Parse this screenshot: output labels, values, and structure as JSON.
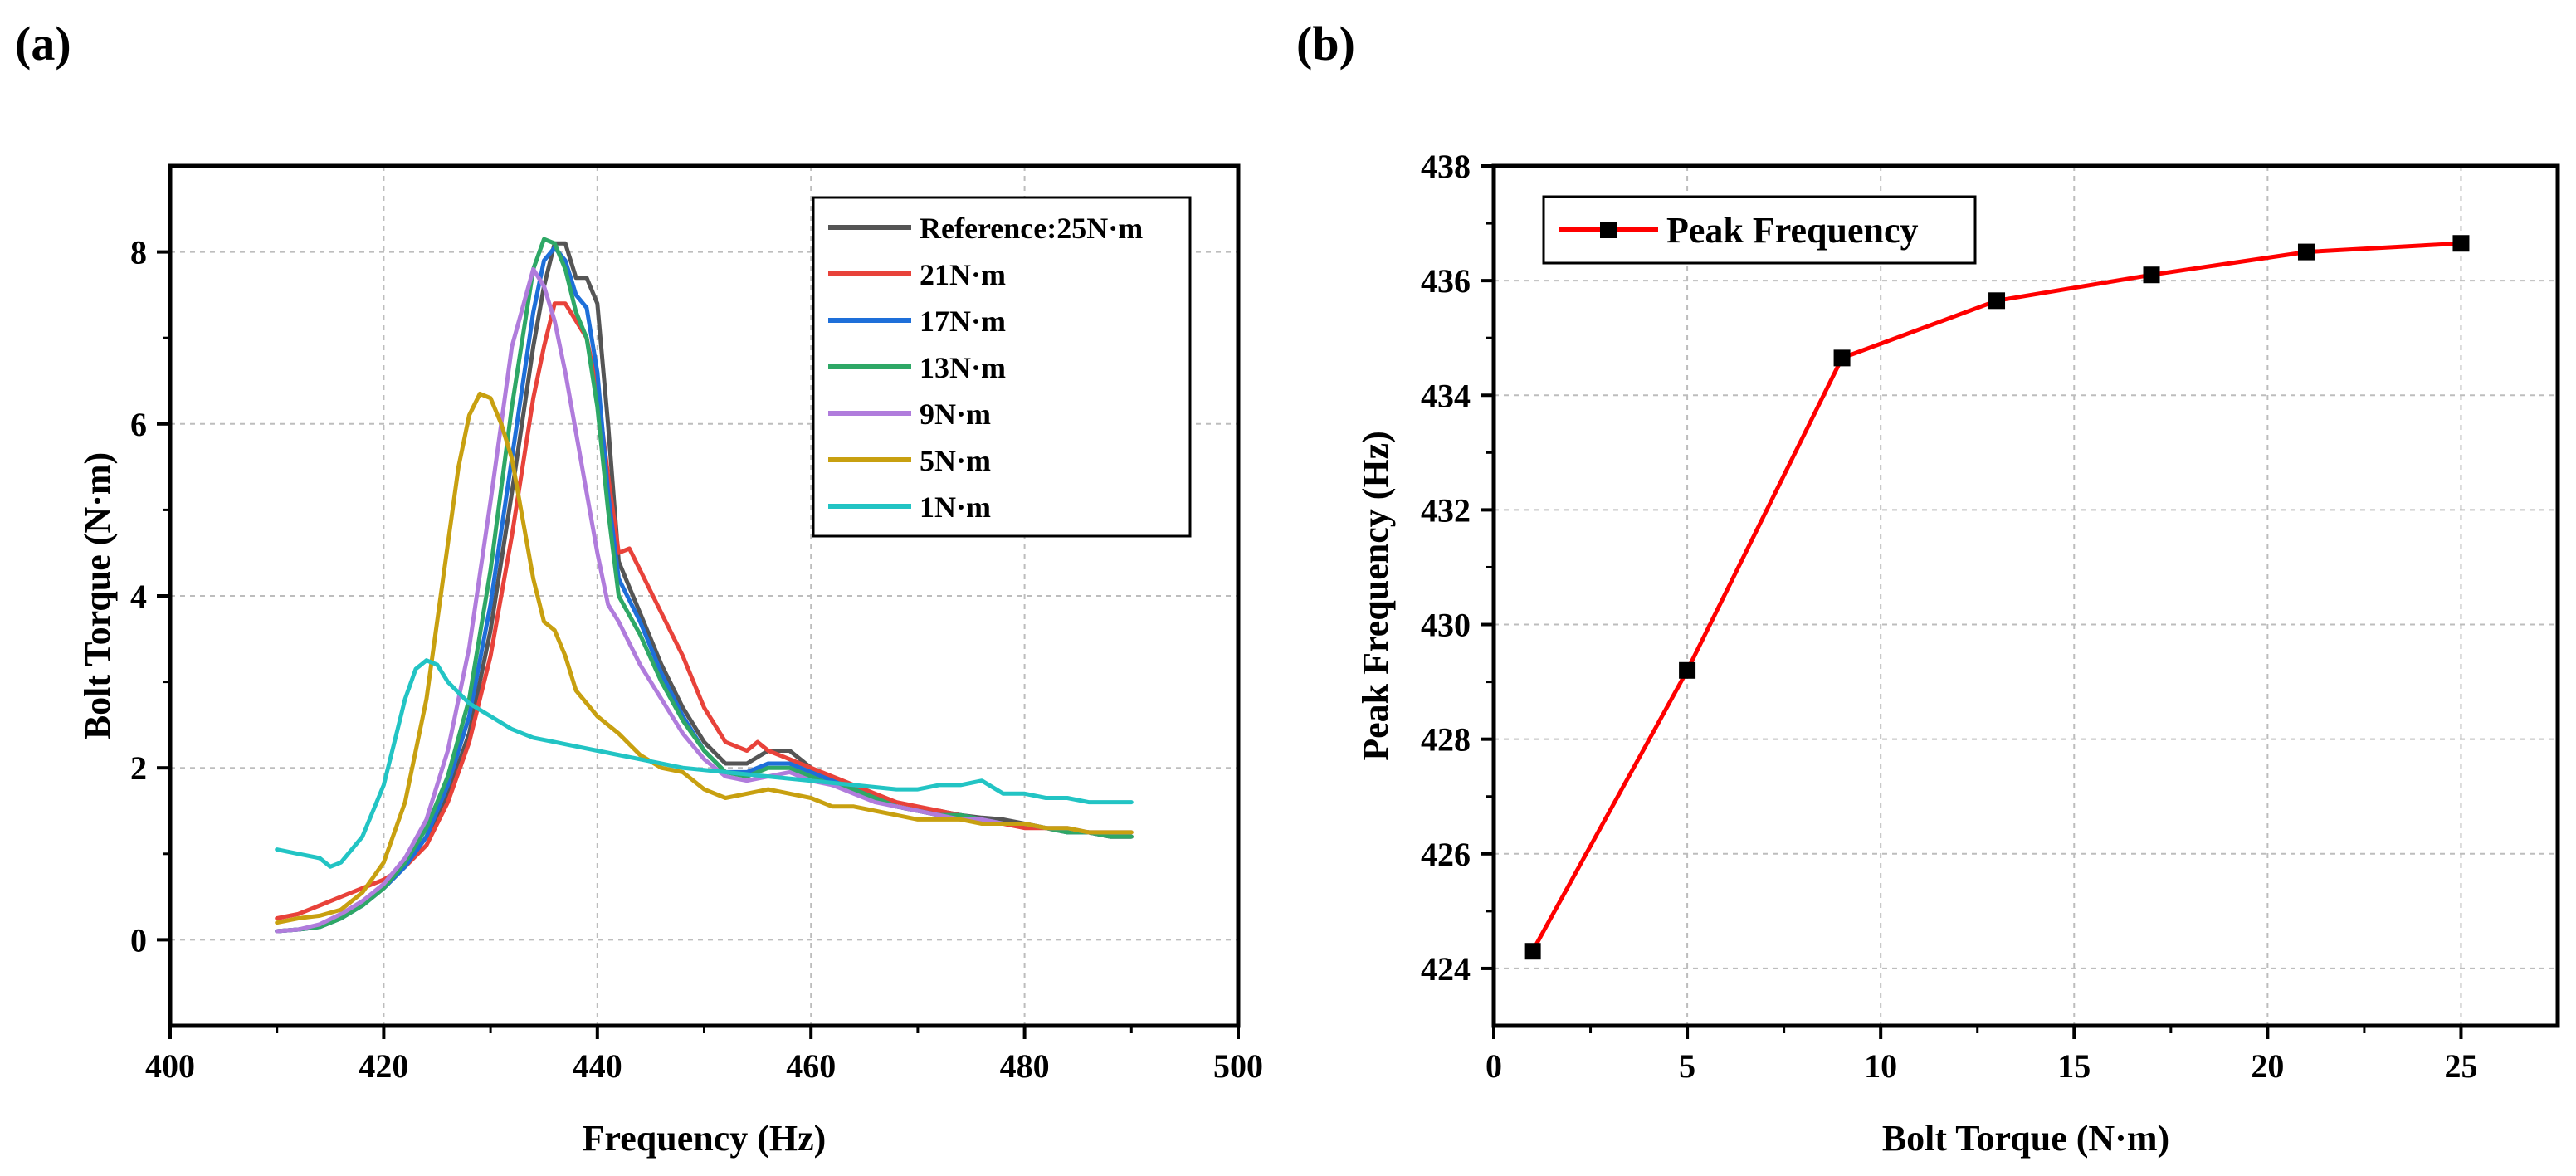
{
  "panels": {
    "a_label": "(a)",
    "b_label": "(b)"
  },
  "chart_data": [
    {
      "type": "line",
      "panel": "(a)",
      "title": "",
      "xlabel": "Frequency (Hz)",
      "ylabel": "Bolt Torque (N·m)",
      "xlim": [
        400,
        500
      ],
      "ylim": [
        -1,
        9
      ],
      "xticks": [
        400,
        420,
        440,
        460,
        480,
        500
      ],
      "yticks": [
        0,
        2,
        4,
        6,
        8
      ],
      "grid": true,
      "legend_position": "top-right",
      "series": [
        {
          "name": "Reference:25N·m",
          "color": "#555555",
          "x": [
            410,
            412,
            414,
            416,
            418,
            420,
            422,
            424,
            426,
            428,
            430,
            432,
            434,
            435,
            436,
            437,
            438,
            439,
            440,
            441,
            442,
            444,
            446,
            448,
            450,
            452,
            454,
            456,
            458,
            460,
            462,
            464,
            466,
            468,
            470,
            472,
            474,
            476,
            478,
            480,
            482,
            484,
            486,
            488,
            490
          ],
          "y": [
            0.1,
            0.12,
            0.15,
            0.25,
            0.4,
            0.6,
            0.85,
            1.2,
            1.7,
            2.4,
            3.6,
            5.2,
            6.9,
            7.6,
            8.1,
            8.1,
            7.7,
            7.7,
            7.4,
            6.0,
            4.4,
            3.8,
            3.2,
            2.7,
            2.3,
            2.05,
            2.05,
            2.2,
            2.2,
            2.0,
            1.85,
            1.75,
            1.65,
            1.55,
            1.5,
            1.5,
            1.45,
            1.42,
            1.4,
            1.35,
            1.3,
            1.28,
            1.25,
            1.2,
            1.2
          ]
        },
        {
          "name": "21N·m",
          "color": "#e8423a",
          "x": [
            410,
            412,
            414,
            416,
            418,
            420,
            422,
            424,
            426,
            428,
            430,
            432,
            434,
            435,
            436,
            437,
            438,
            439,
            440,
            441,
            442,
            443,
            444,
            446,
            448,
            450,
            452,
            454,
            455,
            456,
            458,
            460,
            462,
            464,
            466,
            468,
            470,
            472,
            474,
            476,
            478,
            480,
            482,
            484,
            486,
            488,
            490
          ],
          "y": [
            0.25,
            0.3,
            0.4,
            0.5,
            0.6,
            0.7,
            0.85,
            1.1,
            1.6,
            2.3,
            3.3,
            4.7,
            6.3,
            6.9,
            7.4,
            7.4,
            7.2,
            7.0,
            6.4,
            5.4,
            4.5,
            4.55,
            4.3,
            3.8,
            3.3,
            2.7,
            2.3,
            2.2,
            2.3,
            2.2,
            2.1,
            2.0,
            1.9,
            1.8,
            1.7,
            1.6,
            1.55,
            1.5,
            1.45,
            1.4,
            1.35,
            1.3,
            1.3,
            1.25,
            1.25,
            1.2,
            1.2
          ]
        },
        {
          "name": "17N·m",
          "color": "#1e6fd9",
          "x": [
            410,
            412,
            414,
            416,
            418,
            420,
            422,
            424,
            426,
            428,
            430,
            432,
            434,
            435,
            436,
            437,
            438,
            439,
            440,
            441,
            442,
            444,
            446,
            448,
            450,
            452,
            454,
            456,
            458,
            460,
            462,
            464,
            466,
            468,
            470,
            472,
            474,
            476,
            478,
            480,
            482,
            484,
            486,
            488,
            490
          ],
          "y": [
            0.1,
            0.12,
            0.15,
            0.25,
            0.4,
            0.6,
            0.85,
            1.2,
            1.8,
            2.6,
            3.9,
            5.6,
            7.3,
            7.9,
            8.05,
            7.9,
            7.5,
            7.35,
            6.6,
            5.2,
            4.2,
            3.7,
            3.1,
            2.6,
            2.2,
            1.95,
            1.95,
            2.05,
            2.05,
            1.95,
            1.85,
            1.75,
            1.65,
            1.55,
            1.5,
            1.45,
            1.45,
            1.4,
            1.35,
            1.35,
            1.3,
            1.25,
            1.25,
            1.2,
            1.2
          ]
        },
        {
          "name": "13N·m",
          "color": "#2ea866",
          "x": [
            410,
            412,
            414,
            416,
            418,
            420,
            422,
            424,
            426,
            428,
            430,
            432,
            434,
            435,
            436,
            437,
            438,
            439,
            440,
            441,
            442,
            444,
            446,
            448,
            450,
            452,
            454,
            456,
            458,
            460,
            462,
            464,
            466,
            468,
            470,
            472,
            474,
            476,
            478,
            480,
            482,
            484,
            486,
            488,
            490
          ],
          "y": [
            0.1,
            0.12,
            0.15,
            0.25,
            0.4,
            0.6,
            0.9,
            1.3,
            1.9,
            2.8,
            4.3,
            6.2,
            7.8,
            8.15,
            8.1,
            7.8,
            7.3,
            7.0,
            6.2,
            5.0,
            4.0,
            3.55,
            3.0,
            2.55,
            2.2,
            1.95,
            1.9,
            2.0,
            2.0,
            1.9,
            1.8,
            1.75,
            1.65,
            1.55,
            1.5,
            1.45,
            1.45,
            1.4,
            1.35,
            1.35,
            1.3,
            1.25,
            1.25,
            1.2,
            1.2
          ]
        },
        {
          "name": "9N·m",
          "color": "#b07cdc",
          "x": [
            410,
            412,
            414,
            416,
            418,
            420,
            422,
            424,
            426,
            428,
            430,
            432,
            434,
            435,
            436,
            437,
            438,
            439,
            440,
            441,
            442,
            444,
            446,
            448,
            450,
            452,
            454,
            456,
            458,
            460,
            462,
            464,
            466,
            468,
            470,
            472,
            474,
            476,
            478,
            480,
            482,
            484,
            486,
            488,
            490
          ],
          "y": [
            0.1,
            0.12,
            0.18,
            0.3,
            0.45,
            0.65,
            0.95,
            1.4,
            2.2,
            3.4,
            5.1,
            6.9,
            7.8,
            7.6,
            7.2,
            6.6,
            5.9,
            5.2,
            4.5,
            3.9,
            3.7,
            3.2,
            2.8,
            2.4,
            2.1,
            1.9,
            1.85,
            1.9,
            1.95,
            1.85,
            1.8,
            1.7,
            1.6,
            1.55,
            1.5,
            1.45,
            1.4,
            1.4,
            1.35,
            1.35,
            1.3,
            1.3,
            1.25,
            1.25,
            1.25
          ]
        },
        {
          "name": "5N·m",
          "color": "#c8a010",
          "x": [
            410,
            412,
            414,
            416,
            418,
            420,
            422,
            424,
            426,
            427,
            428,
            429,
            430,
            431,
            432,
            433,
            434,
            435,
            436,
            437,
            438,
            440,
            442,
            444,
            446,
            448,
            450,
            452,
            454,
            456,
            458,
            460,
            462,
            464,
            466,
            468,
            470,
            472,
            474,
            476,
            478,
            480,
            482,
            484,
            486,
            488,
            490
          ],
          "y": [
            0.2,
            0.25,
            0.28,
            0.35,
            0.55,
            0.9,
            1.6,
            2.8,
            4.6,
            5.5,
            6.1,
            6.35,
            6.3,
            6.0,
            5.6,
            4.9,
            4.2,
            3.7,
            3.6,
            3.3,
            2.9,
            2.6,
            2.4,
            2.15,
            2.0,
            1.95,
            1.75,
            1.65,
            1.7,
            1.75,
            1.7,
            1.65,
            1.55,
            1.55,
            1.5,
            1.45,
            1.4,
            1.4,
            1.4,
            1.35,
            1.35,
            1.35,
            1.3,
            1.3,
            1.25,
            1.25,
            1.25
          ]
        },
        {
          "name": "1N·m",
          "color": "#22c4c4",
          "x": [
            410,
            412,
            414,
            415,
            416,
            418,
            420,
            421,
            422,
            423,
            424,
            425,
            426,
            428,
            430,
            432,
            434,
            436,
            438,
            440,
            444,
            448,
            452,
            456,
            460,
            464,
            468,
            470,
            472,
            474,
            476,
            478,
            480,
            482,
            484,
            486,
            488,
            490
          ],
          "y": [
            1.05,
            1.0,
            0.95,
            0.85,
            0.9,
            1.2,
            1.8,
            2.3,
            2.8,
            3.15,
            3.25,
            3.2,
            3.0,
            2.75,
            2.6,
            2.45,
            2.35,
            2.3,
            2.25,
            2.2,
            2.1,
            2.0,
            1.95,
            1.9,
            1.85,
            1.8,
            1.75,
            1.75,
            1.8,
            1.8,
            1.85,
            1.7,
            1.7,
            1.65,
            1.65,
            1.6,
            1.6,
            1.6
          ]
        }
      ]
    },
    {
      "type": "line",
      "panel": "(b)",
      "title": "",
      "xlabel": "Bolt Torque (N·m)",
      "ylabel": "Peak Frequency (Hz)",
      "xlim": [
        0,
        27.5
      ],
      "ylim": [
        423,
        438
      ],
      "xticks": [
        0,
        5,
        10,
        15,
        20,
        25
      ],
      "yticks": [
        424,
        426,
        428,
        430,
        432,
        434,
        436,
        438
      ],
      "grid": true,
      "legend_position": "top-left",
      "series": [
        {
          "name": "Peak Frequency",
          "color": "#ff0000",
          "marker": "square",
          "x": [
            1,
            5,
            9,
            13,
            17,
            21,
            25
          ],
          "y": [
            424.3,
            429.2,
            434.65,
            435.65,
            436.1,
            436.5,
            436.65
          ]
        }
      ]
    }
  ]
}
